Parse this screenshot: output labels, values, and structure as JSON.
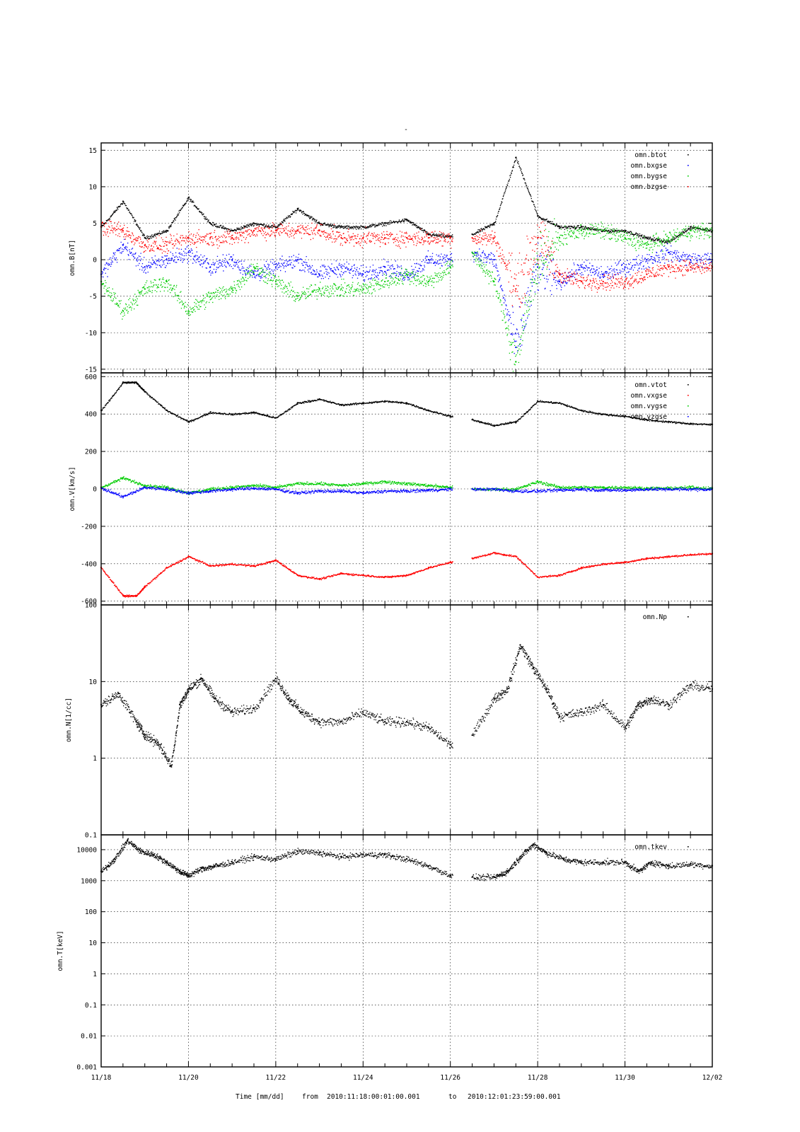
{
  "figure": {
    "title": "-",
    "footer": {
      "xlabel": "Time [mm/dd]",
      "from_label": "from",
      "from_value": "2010:11:18:00:01:00.001",
      "to_label": "to",
      "to_value": "2010:12:01:23:59:00.001"
    },
    "x_ticks": [
      "11/18",
      "11/20",
      "11/22",
      "11/24",
      "11/26",
      "11/28",
      "11/30",
      "12/02"
    ]
  },
  "chart_data": [
    {
      "type": "scatter",
      "ylabel": "omn.B[nT]",
      "yscale": "linear",
      "ylim": [
        -15.5,
        16
      ],
      "yticks": [
        -15,
        -10,
        -5,
        0,
        5,
        10,
        15
      ],
      "ytick_labels": [
        "-15",
        "-10",
        "-5",
        "0",
        "5",
        "10",
        "15"
      ],
      "grid": true,
      "legend_position": "top-right",
      "xlim_days": [
        0,
        14
      ],
      "gap_days": [
        8.05,
        8.5
      ],
      "series": [
        {
          "name": "omn.btot",
          "color": "#000000",
          "x": [
            0,
            0.5,
            1.0,
            1.5,
            2.0,
            2.5,
            3.0,
            3.5,
            4.0,
            4.5,
            5.0,
            5.5,
            6.0,
            6.5,
            7.0,
            7.5,
            8.0,
            8.5,
            9.0,
            9.5,
            10.0,
            10.5,
            11.0,
            11.5,
            12.0,
            12.5,
            13.0,
            13.5,
            14.0
          ],
          "y": [
            4.5,
            8,
            3,
            4,
            8.5,
            5,
            4,
            5,
            4.5,
            7,
            5,
            4.5,
            4.5,
            5,
            5.5,
            3.5,
            3.2,
            3.5,
            5,
            14,
            6,
            4.5,
            4.5,
            4,
            4,
            3,
            2.5,
            4.5,
            4
          ]
        },
        {
          "name": "omn.bxgse",
          "color": "#0000ff",
          "x": [
            0,
            0.5,
            1.0,
            1.5,
            2.0,
            2.5,
            3.0,
            3.5,
            4.0,
            4.5,
            5.0,
            5.5,
            6.0,
            6.5,
            7.0,
            7.5,
            8.0,
            8.5,
            9.0,
            9.5,
            10.0,
            10.5,
            11.0,
            11.5,
            12.0,
            12.5,
            13.0,
            13.5,
            14.0
          ],
          "y": [
            -2,
            2,
            -1,
            0,
            1,
            -1,
            0,
            -2,
            -1,
            0,
            -2,
            -1,
            -2,
            -1,
            -2,
            0,
            0,
            1,
            0,
            -12,
            -1,
            -3,
            -1,
            -2,
            -1,
            0,
            1,
            0,
            0
          ]
        },
        {
          "name": "omn.bygse",
          "color": "#00cc00",
          "x": [
            0,
            0.5,
            1.0,
            1.5,
            2.0,
            2.5,
            3.0,
            3.5,
            4.0,
            4.5,
            5.0,
            5.5,
            6.0,
            6.5,
            7.0,
            7.5,
            8.0,
            8.5,
            9.0,
            9.5,
            10.0,
            10.5,
            11.0,
            11.5,
            12.0,
            12.5,
            13.0,
            13.5,
            14.0
          ],
          "y": [
            -3,
            -7,
            -4,
            -3,
            -7,
            -5,
            -4,
            -1,
            -3,
            -5,
            -4,
            -4,
            -4,
            -3,
            -2,
            -3,
            -1,
            1,
            -3,
            -14,
            0,
            3,
            4,
            4,
            3,
            2,
            3,
            4,
            4
          ]
        },
        {
          "name": "omn.bzgse",
          "color": "#ff0000",
          "x": [
            0,
            0.5,
            1.0,
            1.5,
            2.0,
            2.5,
            3.0,
            3.5,
            4.0,
            4.5,
            5.0,
            5.5,
            6.0,
            6.5,
            7.0,
            7.5,
            8.0,
            8.5,
            9.0,
            9.5,
            10.0,
            10.5,
            11.0,
            11.5,
            12.0,
            12.5,
            13.0,
            13.5,
            14.0
          ],
          "y": [
            4.5,
            4,
            2,
            2,
            3,
            3,
            3,
            4,
            4,
            4,
            4,
            3,
            3,
            3,
            3,
            3,
            3,
            3,
            3,
            -4,
            3,
            -2,
            -3,
            -3,
            -3,
            -2,
            -1,
            -1,
            -1
          ]
        }
      ]
    },
    {
      "type": "scatter",
      "ylabel": "omn.V[km/s]",
      "yscale": "linear",
      "ylim": [
        -620,
        620
      ],
      "yticks": [
        -600,
        -400,
        -200,
        0,
        200,
        400,
        600
      ],
      "ytick_labels": [
        "-600",
        "-400",
        "-200",
        "0",
        "200",
        "400",
        "600"
      ],
      "grid": true,
      "legend_position": "top-right",
      "xlim_days": [
        0,
        14
      ],
      "gap_days": [
        8.05,
        8.5
      ],
      "series": [
        {
          "name": "omn.vtot",
          "color": "#000000",
          "x": [
            0,
            0.5,
            0.8,
            1.0,
            1.5,
            2.0,
            2.5,
            3.0,
            3.5,
            4.0,
            4.5,
            5.0,
            5.5,
            6.0,
            6.5,
            7.0,
            7.5,
            8.0,
            8.5,
            9.0,
            9.5,
            10.0,
            10.5,
            11.0,
            11.5,
            12.0,
            12.5,
            13.0,
            13.5,
            14.0
          ],
          "y": [
            420,
            570,
            570,
            520,
            420,
            360,
            410,
            400,
            410,
            380,
            460,
            480,
            450,
            460,
            470,
            460,
            420,
            390,
            370,
            340,
            360,
            470,
            460,
            420,
            400,
            390,
            370,
            360,
            350,
            345
          ]
        },
        {
          "name": "omn.vxgse",
          "color": "#ff0000",
          "x": [
            0,
            0.5,
            0.8,
            1.0,
            1.5,
            2.0,
            2.5,
            3.0,
            3.5,
            4.0,
            4.5,
            5.0,
            5.5,
            6.0,
            6.5,
            7.0,
            7.5,
            8.0,
            8.5,
            9.0,
            9.5,
            10.0,
            10.5,
            11.0,
            11.5,
            12.0,
            12.5,
            13.0,
            13.5,
            14.0
          ],
          "y": [
            -420,
            -570,
            -570,
            -520,
            -420,
            -360,
            -410,
            -400,
            -410,
            -380,
            -460,
            -480,
            -450,
            -460,
            -470,
            -460,
            -420,
            -390,
            -370,
            -340,
            -360,
            -470,
            -460,
            -420,
            -400,
            -390,
            -370,
            -360,
            -350,
            -345
          ]
        },
        {
          "name": "omn.vygse",
          "color": "#00cc00",
          "x": [
            0,
            0.5,
            1.0,
            1.5,
            2.0,
            2.5,
            3.0,
            3.5,
            4.0,
            4.5,
            5.0,
            5.5,
            6.0,
            6.5,
            7.0,
            7.5,
            8.0,
            8.5,
            9.0,
            9.5,
            10.0,
            10.5,
            11.0,
            11.5,
            12.0,
            12.5,
            13.0,
            13.5,
            14.0
          ],
          "y": [
            10,
            60,
            20,
            10,
            -20,
            0,
            10,
            20,
            10,
            30,
            30,
            20,
            30,
            40,
            30,
            20,
            10,
            0,
            0,
            0,
            40,
            10,
            10,
            10,
            10,
            5,
            5,
            10,
            5
          ]
        },
        {
          "name": "omn.vzgse",
          "color": "#0000ff",
          "x": [
            0,
            0.5,
            1.0,
            1.5,
            2.0,
            2.5,
            3.0,
            3.5,
            4.0,
            4.5,
            5.0,
            5.5,
            6.0,
            6.5,
            7.0,
            7.5,
            8.0,
            8.5,
            9.0,
            9.5,
            10.0,
            10.5,
            11.0,
            11.5,
            12.0,
            12.5,
            13.0,
            13.5,
            14.0
          ],
          "y": [
            5,
            -40,
            10,
            0,
            -20,
            -10,
            0,
            5,
            0,
            -20,
            -10,
            -10,
            -20,
            -10,
            -10,
            -5,
            0,
            0,
            0,
            -10,
            -10,
            -5,
            0,
            -5,
            -5,
            0,
            0,
            0,
            0
          ]
        }
      ]
    },
    {
      "type": "scatter",
      "ylabel": "omn.N[1/cc]",
      "yscale": "log",
      "ylim": [
        0.1,
        100
      ],
      "yticks": [
        0.1,
        1,
        10,
        100
      ],
      "ytick_labels": [
        "0.1",
        "1",
        "10",
        "100"
      ],
      "grid": true,
      "legend_position": "top-right",
      "xlim_days": [
        0,
        14
      ],
      "gap_days": [
        8.05,
        8.5
      ],
      "series": [
        {
          "name": "omn.Np",
          "color": "#000000",
          "x": [
            0,
            0.4,
            0.8,
            1.0,
            1.3,
            1.6,
            1.8,
            2.0,
            2.3,
            2.6,
            3.0,
            3.5,
            4.0,
            4.3,
            4.6,
            5.0,
            5.5,
            6.0,
            6.5,
            7.0,
            7.5,
            8.0,
            8.5,
            9.0,
            9.3,
            9.6,
            9.9,
            10.2,
            10.5,
            11.0,
            11.5,
            12.0,
            12.3,
            12.6,
            13.0,
            13.5,
            14.0
          ],
          "y": [
            5,
            7,
            3,
            2,
            1.6,
            0.8,
            5,
            8,
            11,
            6,
            4,
            4.5,
            11,
            6,
            4,
            3,
            3,
            4,
            3,
            3,
            2.5,
            1.5,
            2,
            6,
            8,
            30,
            15,
            8,
            3.5,
            4,
            5,
            2.5,
            5,
            6,
            5,
            9,
            8
          ]
        }
      ]
    },
    {
      "type": "scatter",
      "ylabel": "omn.T[keV]",
      "yscale": "log",
      "ylim": [
        0.001,
        30000
      ],
      "yticks": [
        0.001,
        0.01,
        0.1,
        1,
        10,
        100,
        1000,
        10000
      ],
      "ytick_labels": [
        "0.001",
        "0.01",
        "0.1",
        "1",
        "10",
        "100",
        "1000",
        "10000"
      ],
      "grid": true,
      "legend_position": "top-right",
      "xlim_days": [
        0,
        14
      ],
      "gap_days": [
        8.05,
        8.5
      ],
      "series": [
        {
          "name": "omn.tkev",
          "color": "#000000",
          "x": [
            0,
            0.3,
            0.6,
            0.9,
            1.2,
            1.5,
            1.8,
            2.0,
            2.3,
            2.6,
            3.0,
            3.5,
            4.0,
            4.5,
            5.0,
            5.5,
            6.0,
            6.5,
            7.0,
            7.5,
            8.0,
            8.5,
            9.0,
            9.3,
            9.6,
            9.9,
            10.2,
            10.6,
            11.0,
            11.5,
            12.0,
            12.3,
            12.6,
            13.0,
            13.5,
            14.0
          ],
          "y": [
            2000,
            5000,
            20000,
            9000,
            7000,
            4000,
            2000,
            1500,
            2500,
            3000,
            4000,
            6000,
            5000,
            9000,
            8000,
            6000,
            7000,
            7000,
            5000,
            3000,
            1500,
            1300,
            1300,
            2000,
            6000,
            15000,
            8000,
            5000,
            4000,
            4000,
            4000,
            2000,
            4000,
            3000,
            3500,
            3000
          ]
        }
      ]
    }
  ]
}
